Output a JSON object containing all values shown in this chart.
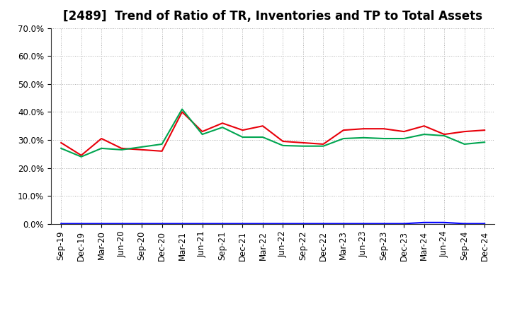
{
  "title": "[2489]  Trend of Ratio of TR, Inventories and TP to Total Assets",
  "x_labels": [
    "Sep-19",
    "Dec-19",
    "Mar-20",
    "Jun-20",
    "Sep-20",
    "Dec-20",
    "Mar-21",
    "Jun-21",
    "Sep-21",
    "Dec-21",
    "Mar-22",
    "Jun-22",
    "Sep-22",
    "Dec-22",
    "Mar-23",
    "Jun-23",
    "Sep-23",
    "Dec-23",
    "Mar-24",
    "Jun-24",
    "Sep-24",
    "Dec-24"
  ],
  "trade_receivables": [
    0.29,
    0.245,
    0.305,
    0.27,
    0.265,
    0.26,
    0.4,
    0.33,
    0.36,
    0.335,
    0.35,
    0.295,
    0.29,
    0.285,
    0.335,
    0.34,
    0.34,
    0.33,
    0.35,
    0.32,
    0.33,
    0.335
  ],
  "inventories": [
    0.001,
    0.001,
    0.001,
    0.001,
    0.001,
    0.001,
    0.001,
    0.001,
    0.001,
    0.001,
    0.001,
    0.001,
    0.001,
    0.001,
    0.001,
    0.001,
    0.001,
    0.001,
    0.005,
    0.005,
    0.001,
    0.001
  ],
  "trade_payables": [
    0.27,
    0.24,
    0.27,
    0.265,
    0.275,
    0.285,
    0.41,
    0.32,
    0.345,
    0.31,
    0.31,
    0.28,
    0.278,
    0.278,
    0.305,
    0.308,
    0.305,
    0.305,
    0.32,
    0.315,
    0.285,
    0.292
  ],
  "ylim": [
    0.0,
    0.7
  ],
  "yticks": [
    0.0,
    0.1,
    0.2,
    0.3,
    0.4,
    0.5,
    0.6,
    0.7
  ],
  "color_tr": "#e8000a",
  "color_inv": "#0000ff",
  "color_tp": "#00a550",
  "bg_color": "#ffffff",
  "grid_color": "#b0b0b0",
  "title_fontsize": 12,
  "axis_fontsize": 8.5,
  "legend_fontsize": 9.5
}
